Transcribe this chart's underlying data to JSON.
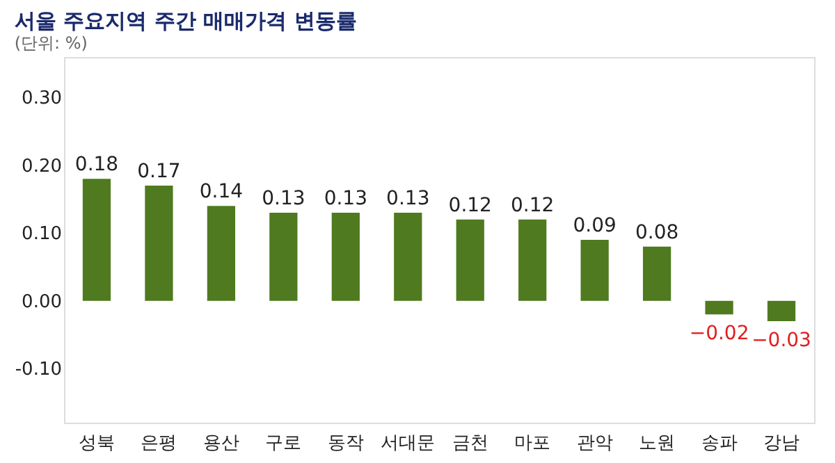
{
  "chart_data": {
    "type": "bar",
    "title": "서울 주요지역 주간 매매가격 변동률",
    "annotations": [
      "(단위: %)"
    ],
    "categories": [
      "성북",
      "은평",
      "용산",
      "구로",
      "동작",
      "서대문",
      "금천",
      "마포",
      "관악",
      "노원",
      "송파",
      "강남"
    ],
    "values": [
      0.18,
      0.17,
      0.14,
      0.13,
      0.13,
      0.13,
      0.12,
      0.12,
      0.09,
      0.08,
      -0.02,
      -0.03
    ],
    "color": "#4f7a1f",
    "ylim": [
      -0.18,
      0.36
    ],
    "yticks": [
      {
        "value": -0.1,
        "label": "-0.10"
      },
      {
        "value": 0,
        "label": "0.00"
      },
      {
        "value": 0.1,
        "label": "0.10"
      },
      {
        "value": 0.2,
        "label": "0.20"
      },
      {
        "value": 0.3,
        "label": "0.30"
      }
    ],
    "grid": false,
    "data_labels": true
  }
}
